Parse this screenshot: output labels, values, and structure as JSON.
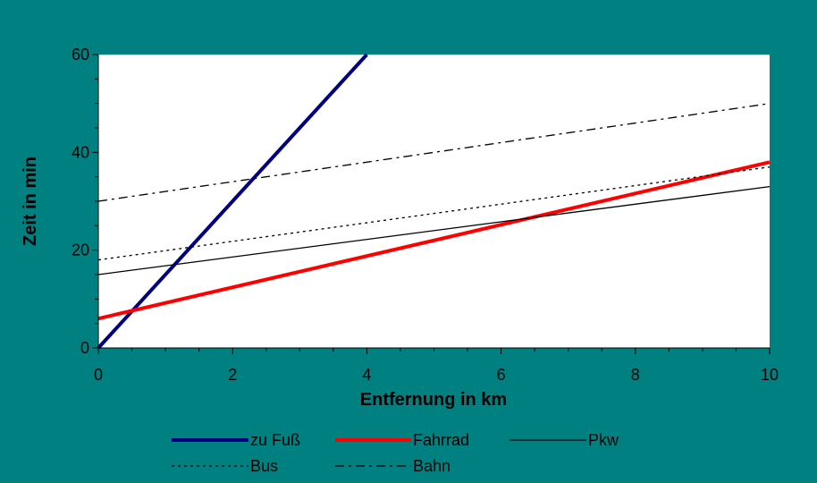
{
  "chart_data": {
    "type": "line",
    "xlabel": "Entfernung in km",
    "ylabel": "Zeit in min",
    "xlim": [
      0,
      10
    ],
    "ylim": [
      0,
      60
    ],
    "xticks": [
      "0",
      "2",
      "4",
      "6",
      "8",
      "10"
    ],
    "yticks": [
      "0",
      "20",
      "40",
      "60"
    ],
    "grid": false,
    "legend_position": "bottom",
    "series": [
      {
        "name": "zu Fuß",
        "color": "#000080",
        "dash": "solid",
        "width": "thick",
        "x": [
          0,
          4
        ],
        "y": [
          0,
          60
        ]
      },
      {
        "name": "Fahrrad",
        "color": "#ff0000",
        "dash": "solid",
        "width": "thick",
        "x": [
          0,
          10
        ],
        "y": [
          6,
          38
        ]
      },
      {
        "name": "Pkw",
        "color": "#000000",
        "dash": "solid",
        "width": "thin",
        "x": [
          0,
          10
        ],
        "y": [
          15,
          33
        ]
      },
      {
        "name": "Bus",
        "color": "#000000",
        "dash": "dotted",
        "width": "thin",
        "x": [
          0,
          10
        ],
        "y": [
          18,
          37
        ]
      },
      {
        "name": "Bahn",
        "color": "#000000",
        "dash": "dash-dot",
        "width": "thin",
        "x": [
          0,
          10
        ],
        "y": [
          30,
          50
        ]
      }
    ]
  }
}
